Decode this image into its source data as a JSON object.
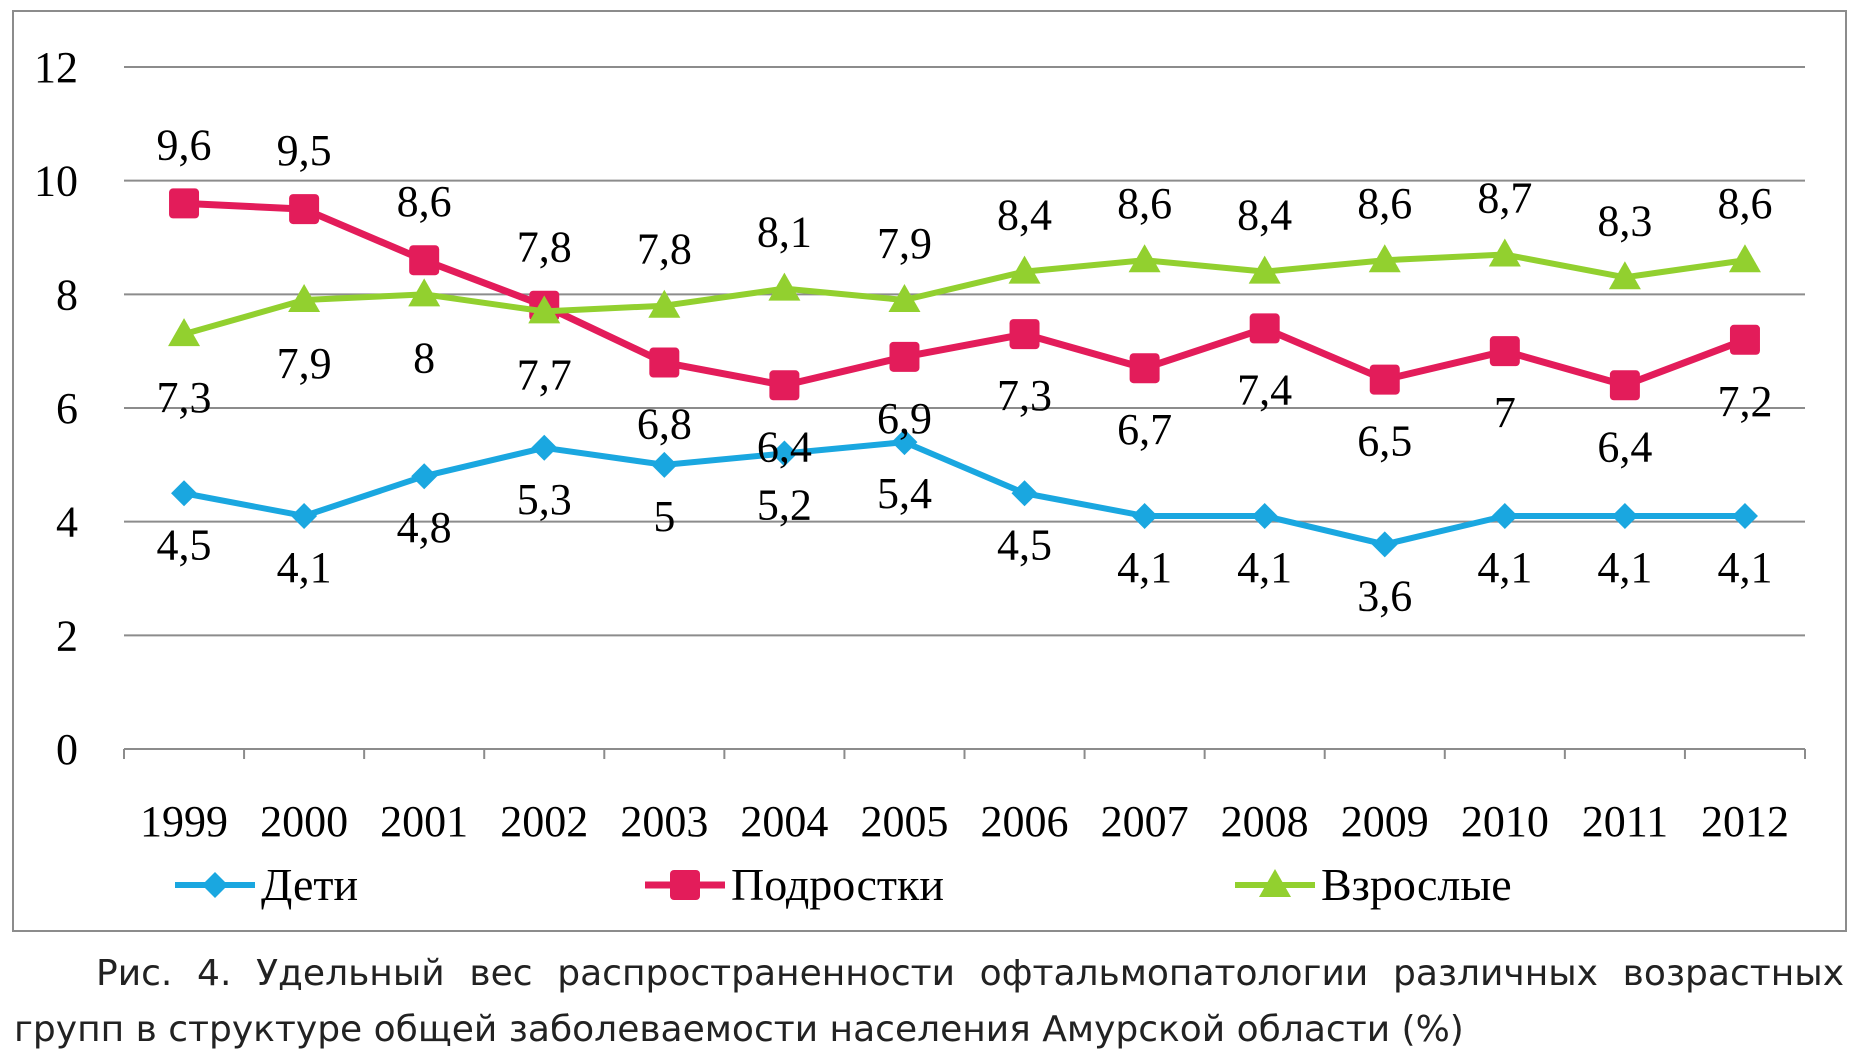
{
  "chart_data": {
    "type": "line",
    "title": "",
    "xlabel": "",
    "ylabel": "",
    "ylim": [
      0,
      12
    ],
    "yticks": [
      0,
      2,
      4,
      6,
      8,
      10,
      12
    ],
    "grid": true,
    "legend_position": "bottom",
    "categories": [
      "1999",
      "2000",
      "2001",
      "2002",
      "2003",
      "2004",
      "2005",
      "2006",
      "2007",
      "2008",
      "2009",
      "2010",
      "2011",
      "2012"
    ],
    "series": [
      {
        "name": "Дети",
        "marker": "diamond",
        "color": "#1aa7e0",
        "values": [
          4.5,
          4.1,
          4.8,
          5.3,
          5.0,
          5.2,
          5.4,
          4.5,
          4.1,
          4.1,
          3.6,
          4.1,
          4.1,
          4.1
        ],
        "labels": [
          "4,5",
          "4,1",
          "4,8",
          "5,3",
          "5",
          "5,2",
          "5,4",
          "4,5",
          "4,1",
          "4,1",
          "3,6",
          "4,1",
          "4,1",
          "4,1"
        ]
      },
      {
        "name": "Подростки",
        "marker": "square",
        "color": "#e31c5a",
        "values": [
          9.6,
          9.5,
          8.6,
          7.8,
          6.8,
          6.4,
          6.9,
          7.3,
          6.7,
          7.4,
          6.5,
          7.0,
          6.4,
          7.2
        ],
        "labels": [
          "9,6",
          "9,5",
          "8,6",
          "7,8",
          "6,8",
          "6,4",
          "6,9",
          "7,3",
          "6,7",
          "7,4",
          "6,5",
          "7",
          "6,4",
          "7,2"
        ]
      },
      {
        "name": "Взрослые",
        "marker": "triangle",
        "color": "#92d02f",
        "values": [
          7.3,
          7.9,
          8.0,
          7.7,
          7.8,
          8.1,
          7.9,
          8.4,
          8.6,
          8.4,
          8.6,
          8.7,
          8.3,
          8.6
        ],
        "labels": [
          "7,3",
          "7,9",
          "8",
          "7,7",
          "7,8",
          "8,1",
          "7,9",
          "8,4",
          "8,6",
          "8,4",
          "8,6",
          "8,7",
          "8,3",
          "8,6"
        ]
      }
    ]
  },
  "caption": "Рис. 4. Удельный вес распространенности офтальмопатологии различных возрастных групп в структуре общей заболеваемости населения Амурской области (%)"
}
